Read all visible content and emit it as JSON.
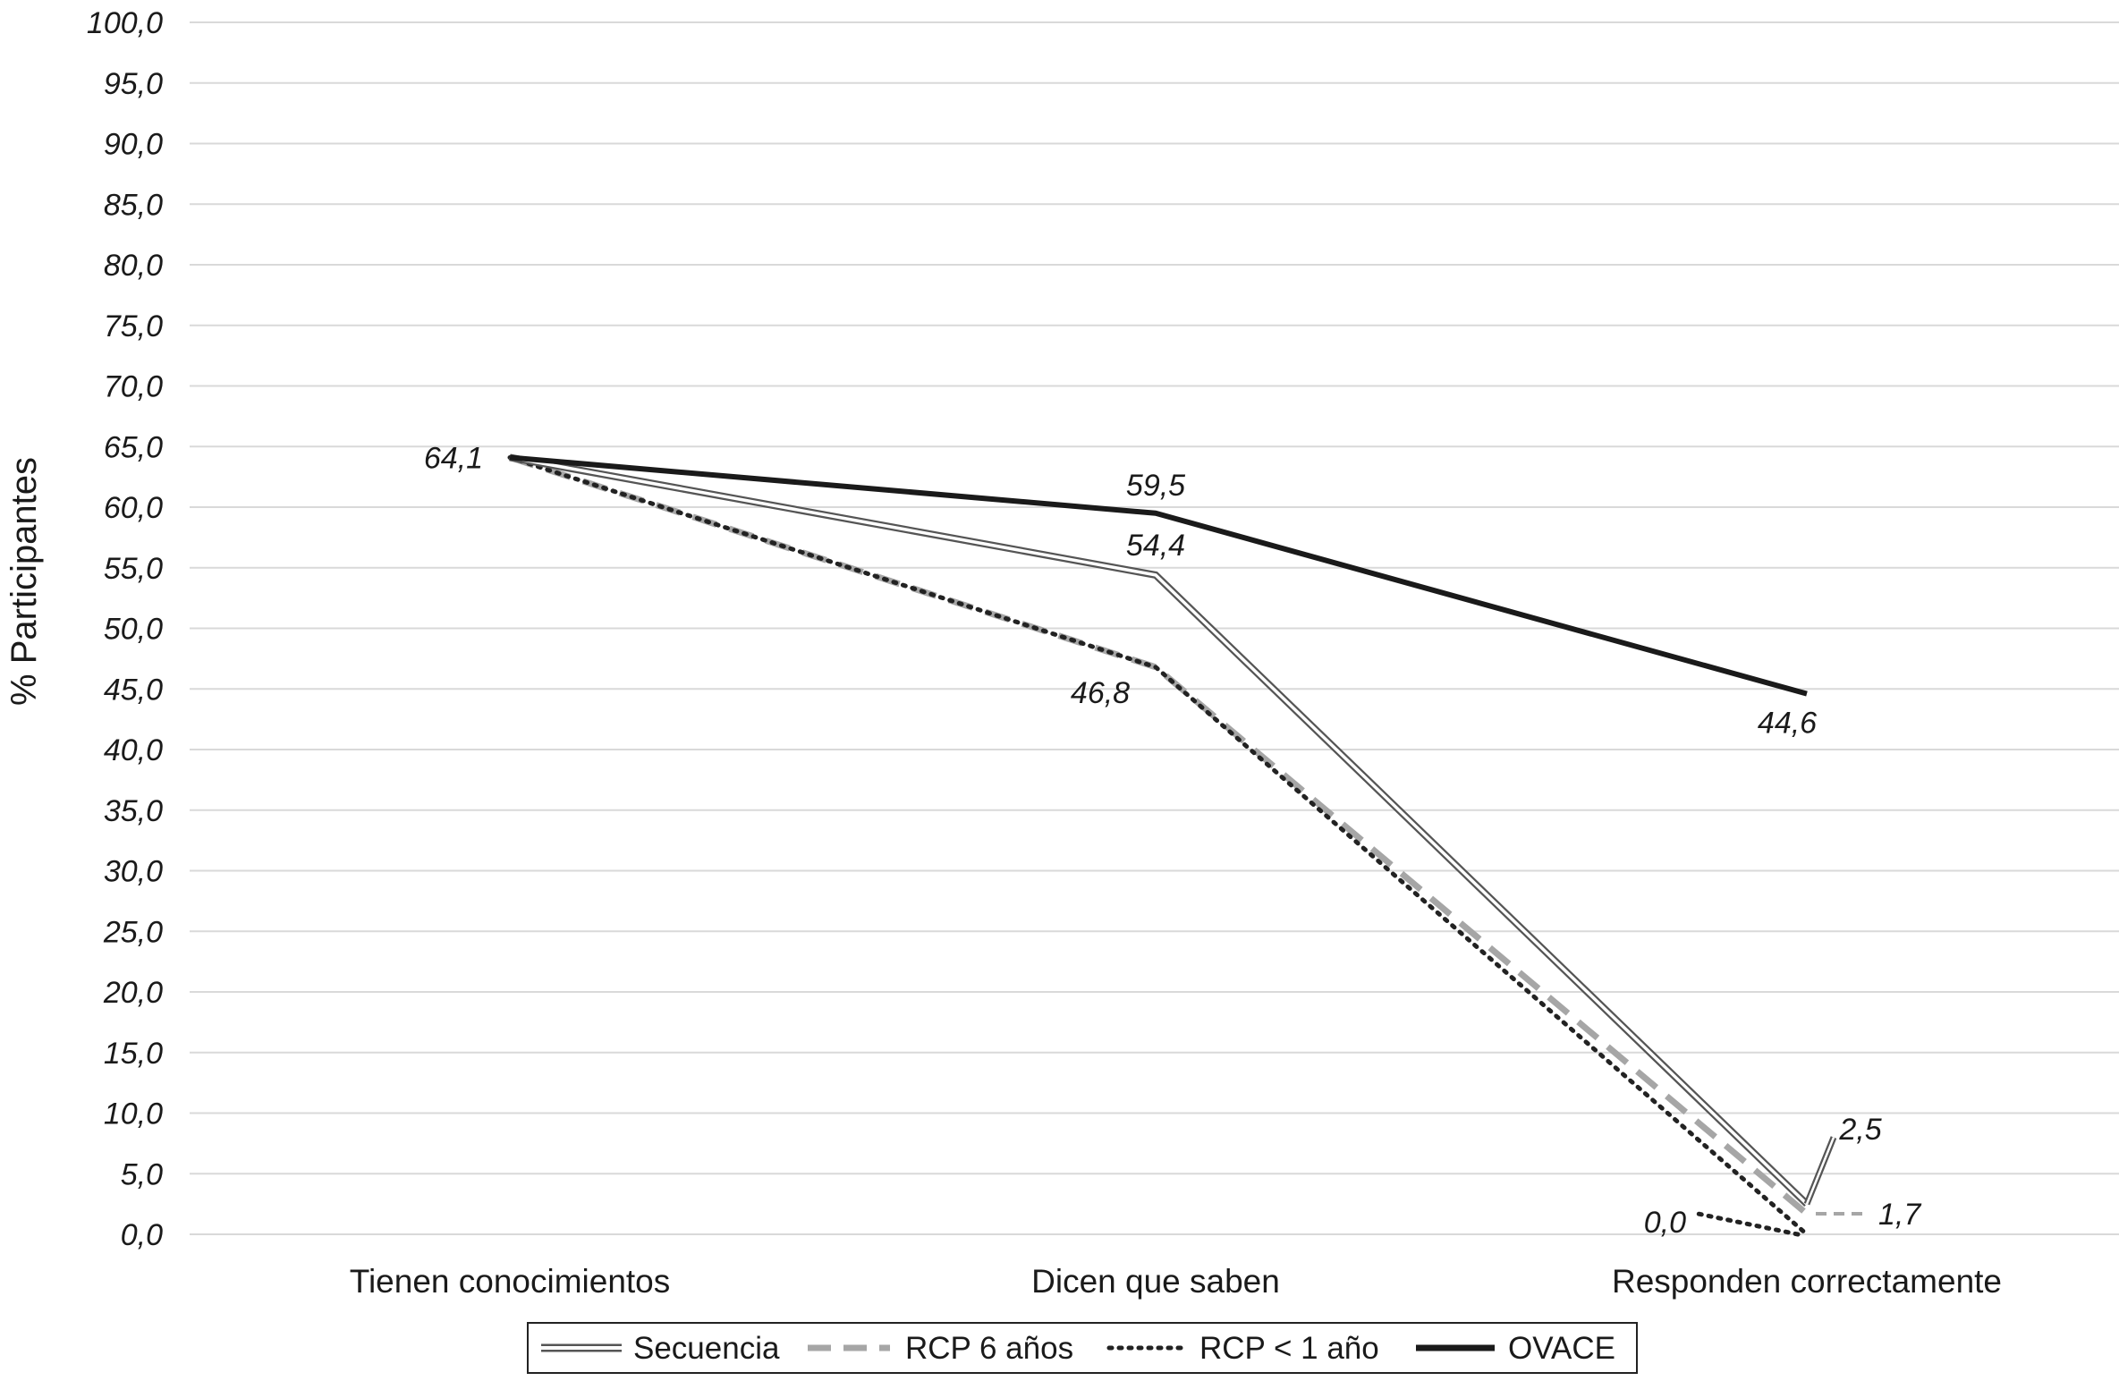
{
  "chart_data": {
    "type": "line",
    "ylabel": "% Participantes",
    "xlabel": "",
    "ylim": [
      0,
      100
    ],
    "ytick_step": 5,
    "ytick_labels": [
      "0,0",
      "5,0",
      "10,0",
      "15,0",
      "20,0",
      "25,0",
      "30,0",
      "35,0",
      "40,0",
      "45,0",
      "50,0",
      "55,0",
      "60,0",
      "65,0",
      "70,0",
      "75,0",
      "80,0",
      "85,0",
      "90,0",
      "95,0",
      "100,0"
    ],
    "grid": true,
    "legend_position": "bottom",
    "categories": [
      "Tienen conocimientos",
      "Dicen que saben",
      "Responden correctamente"
    ],
    "series": [
      {
        "name": "Secuencia",
        "values": [
          64.1,
          54.4,
          2.5
        ],
        "style": "double",
        "color": "#555555"
      },
      {
        "name": "RCP 6 años",
        "values": [
          64.1,
          46.8,
          1.7
        ],
        "style": "dashed",
        "color": "#a6a6a6"
      },
      {
        "name": "RCP < 1 año",
        "values": [
          64.1,
          46.8,
          0.0
        ],
        "style": "dotted",
        "color": "#222222"
      },
      {
        "name": "OVACE",
        "values": [
          64.1,
          59.5,
          44.6
        ],
        "style": "solid",
        "color": "#1a1a1a"
      }
    ],
    "data_labels": [
      "64,1",
      "59,5",
      "54,4",
      "46,8",
      "44,6",
      "2,5",
      "1,7",
      "0,0"
    ]
  }
}
